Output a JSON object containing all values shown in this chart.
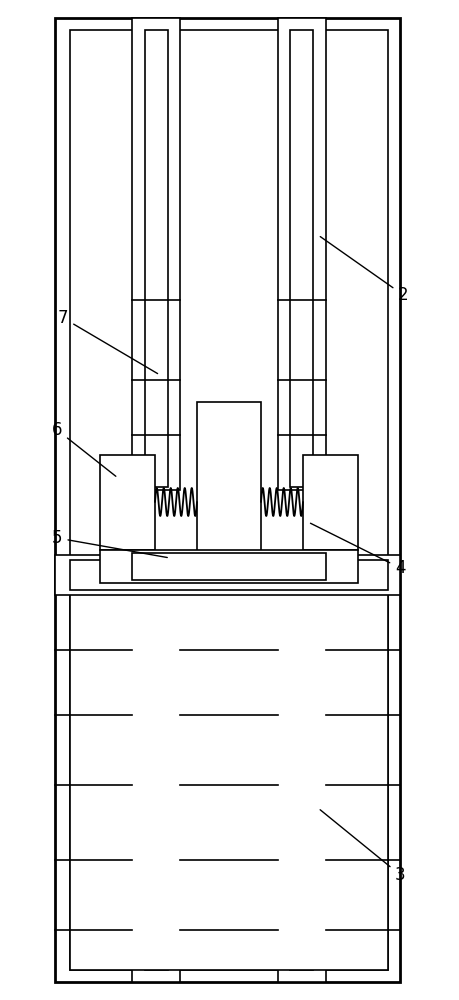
{
  "bg_color": "#ffffff",
  "line_color": "#000000",
  "lw": 1.2,
  "lw_thick": 2.0
}
